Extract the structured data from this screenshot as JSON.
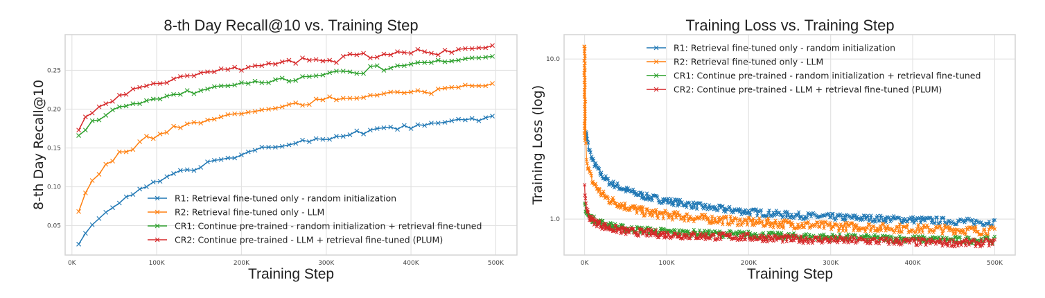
{
  "chart_data": [
    {
      "type": "line",
      "title": "8-th Day Recall@10 vs. Training Step",
      "xlabel": "Training Step",
      "ylabel": "8-th Day Recall@10",
      "xlim": [
        -8000,
        525000
      ],
      "ylim": [
        0.012,
        0.296
      ],
      "xticks": [
        0,
        100000,
        200000,
        300000,
        400000,
        500000
      ],
      "xtick_labels": [
        "0K",
        "100K",
        "200K",
        "300K",
        "400K",
        "500K"
      ],
      "yticks": [
        0.05,
        0.1,
        0.15,
        0.2,
        0.25
      ],
      "ytick_labels": [
        "0.05",
        "0.10",
        "0.15",
        "0.20",
        "0.25"
      ],
      "grid": true,
      "legend_position": "lower-right",
      "x_start": 8000,
      "x_step": 8000,
      "series": [
        {
          "name": "R1: Retrieval fine-tuned only - random initialization",
          "color": "#1f77b4",
          "values": [
            0.026,
            0.04,
            0.051,
            0.059,
            0.067,
            0.073,
            0.079,
            0.087,
            0.09,
            0.097,
            0.1,
            0.106,
            0.107,
            0.113,
            0.117,
            0.121,
            0.122,
            0.121,
            0.125,
            0.132,
            0.134,
            0.135,
            0.137,
            0.137,
            0.141,
            0.145,
            0.147,
            0.151,
            0.151,
            0.151,
            0.152,
            0.154,
            0.156,
            0.16,
            0.158,
            0.162,
            0.161,
            0.161,
            0.165,
            0.165,
            0.167,
            0.172,
            0.168,
            0.173,
            0.175,
            0.176,
            0.177,
            0.174,
            0.179,
            0.175,
            0.18,
            0.179,
            0.182,
            0.182,
            0.183,
            0.185,
            0.187,
            0.186,
            0.188,
            0.185,
            0.189,
            0.191
          ]
        },
        {
          "name": "R2: Retrieval fine-tuned only - LLM",
          "color": "#ff7f0e",
          "values": [
            0.068,
            0.092,
            0.108,
            0.116,
            0.129,
            0.133,
            0.145,
            0.145,
            0.148,
            0.158,
            0.165,
            0.162,
            0.168,
            0.17,
            0.178,
            0.176,
            0.181,
            0.183,
            0.182,
            0.186,
            0.187,
            0.19,
            0.193,
            0.194,
            0.194,
            0.196,
            0.197,
            0.199,
            0.2,
            0.201,
            0.203,
            0.206,
            0.208,
            0.205,
            0.206,
            0.213,
            0.212,
            0.216,
            0.212,
            0.214,
            0.214,
            0.214,
            0.215,
            0.218,
            0.218,
            0.22,
            0.222,
            0.222,
            0.221,
            0.222,
            0.224,
            0.222,
            0.22,
            0.226,
            0.227,
            0.228,
            0.228,
            0.231,
            0.23,
            0.23,
            0.23,
            0.233
          ]
        },
        {
          "name": "CR1: Continue pre-trained - random initialization + retrieval fine-tuned",
          "color": "#2ca02c",
          "values": [
            0.166,
            0.173,
            0.185,
            0.186,
            0.192,
            0.199,
            0.203,
            0.204,
            0.207,
            0.207,
            0.211,
            0.213,
            0.213,
            0.217,
            0.219,
            0.219,
            0.224,
            0.22,
            0.224,
            0.226,
            0.229,
            0.23,
            0.23,
            0.231,
            0.234,
            0.233,
            0.236,
            0.234,
            0.234,
            0.238,
            0.24,
            0.236,
            0.237,
            0.242,
            0.242,
            0.243,
            0.244,
            0.247,
            0.249,
            0.249,
            0.248,
            0.246,
            0.246,
            0.255,
            0.256,
            0.25,
            0.253,
            0.256,
            0.256,
            0.258,
            0.26,
            0.26,
            0.26,
            0.263,
            0.261,
            0.262,
            0.263,
            0.265,
            0.266,
            0.266,
            0.267,
            0.268
          ]
        },
        {
          "name": "CR2: Continue pre-trained - LLM + retrieval fine-tuned (PLUM)",
          "color": "#d62728",
          "values": [
            0.173,
            0.19,
            0.195,
            0.203,
            0.207,
            0.21,
            0.218,
            0.219,
            0.226,
            0.228,
            0.23,
            0.233,
            0.233,
            0.234,
            0.239,
            0.242,
            0.243,
            0.243,
            0.247,
            0.248,
            0.248,
            0.252,
            0.251,
            0.254,
            0.25,
            0.254,
            0.256,
            0.256,
            0.259,
            0.258,
            0.261,
            0.263,
            0.259,
            0.266,
            0.263,
            0.264,
            0.262,
            0.263,
            0.26,
            0.268,
            0.271,
            0.27,
            0.272,
            0.266,
            0.267,
            0.271,
            0.27,
            0.274,
            0.273,
            0.272,
            0.277,
            0.274,
            0.272,
            0.27,
            0.276,
            0.273,
            0.277,
            0.278,
            0.278,
            0.279,
            0.279,
            0.282
          ]
        }
      ]
    },
    {
      "type": "line",
      "title": "Training Loss vs. Training Step",
      "xlabel": "Training Step",
      "ylabel": "Training Loss (log)",
      "yscale": "log",
      "xlim": [
        -25000,
        525000
      ],
      "ylim": [
        0.596,
        14.2
      ],
      "xticks": [
        0,
        100000,
        200000,
        300000,
        400000,
        500000
      ],
      "xtick_labels": [
        "0K",
        "100K",
        "200K",
        "300K",
        "400K",
        "500K"
      ],
      "yticks": [
        1.0,
        10.0
      ],
      "ytick_labels": [
        "1.0",
        "10.0"
      ],
      "grid": true,
      "legend_position": "upper-center",
      "x": [
        0,
        2000,
        5000,
        10000,
        20000,
        30000,
        50000,
        75000,
        100000,
        150000,
        200000,
        250000,
        300000,
        350000,
        400000,
        450000,
        500000
      ],
      "series": [
        {
          "name": "R1: Retrieval fine-tuned only - random initialization",
          "color": "#1f77b4",
          "values": [
            null,
            3.3,
            2.8,
            2.3,
            1.9,
            1.7,
            1.52,
            1.38,
            1.3,
            1.18,
            1.11,
            1.06,
            1.03,
            1.01,
            0.99,
            0.97,
            0.95
          ]
        },
        {
          "name": "R2: Retrieval fine-tuned only - LLM",
          "color": "#ff7f0e",
          "values": [
            12.0,
            2.5,
            2.0,
            1.7,
            1.45,
            1.32,
            1.2,
            1.1,
            1.06,
            1.0,
            0.96,
            0.93,
            0.9,
            0.89,
            0.87,
            0.86,
            0.84
          ]
        },
        {
          "name": "CR1: Continue pre-trained - random initialization + retrieval fine-tuned",
          "color": "#2ca02c",
          "values": [
            1.25,
            1.1,
            1.04,
            1.0,
            0.95,
            0.91,
            0.87,
            0.85,
            0.83,
            0.81,
            0.8,
            0.78,
            0.77,
            0.76,
            0.75,
            0.74,
            0.74
          ]
        },
        {
          "name": "CR2: Continue pre-trained - LLM + retrieval fine-tuned (PLUM)",
          "color": "#d62728",
          "values": [
            1.55,
            1.2,
            1.05,
            0.98,
            0.92,
            0.88,
            0.84,
            0.82,
            0.8,
            0.78,
            0.77,
            0.75,
            0.74,
            0.73,
            0.72,
            0.71,
            0.71
          ]
        }
      ]
    }
  ]
}
